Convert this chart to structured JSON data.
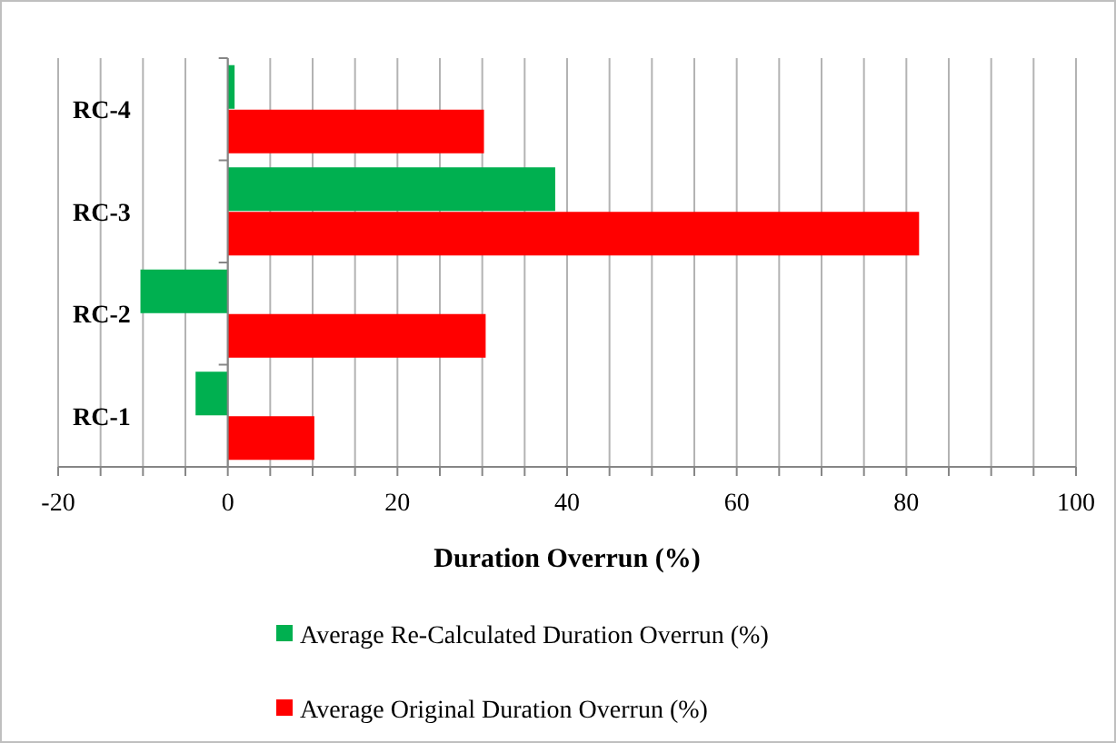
{
  "chart_data": {
    "type": "bar",
    "orientation": "horizontal",
    "xlabel": "Duration Overrun (%)",
    "categories": [
      "RC-4",
      "RC-3",
      "RC-2",
      "RC-1"
    ],
    "series": [
      {
        "name": "Average Re-Calculated Duration Overrun (%)",
        "color": "#00b050",
        "values": [
          0.8,
          38.6,
          -10.3,
          -3.8
        ]
      },
      {
        "name": "Average Original Duration Overrun (%)",
        "color": "#ff0000",
        "values": [
          30.2,
          81.5,
          30.4,
          10.2
        ]
      }
    ],
    "xlim": [
      -20,
      100
    ],
    "xticks": [
      -20,
      {
        "value": -15,
        "label": null
      },
      {
        "value": -10,
        "label": null
      },
      {
        "value": -5,
        "label": null
      },
      0,
      {
        "value": 5,
        "label": null
      },
      {
        "value": 10,
        "label": null
      },
      {
        "value": 15,
        "label": null
      },
      20,
      {
        "value": 25,
        "label": null
      },
      {
        "value": 30,
        "label": null
      },
      {
        "value": 35,
        "label": null
      },
      40,
      {
        "value": 45,
        "label": null
      },
      {
        "value": 50,
        "label": null
      },
      {
        "value": 55,
        "label": null
      },
      60,
      {
        "value": 65,
        "label": null
      },
      {
        "value": 70,
        "label": null
      },
      {
        "value": 75,
        "label": null
      },
      80,
      {
        "value": 85,
        "label": null
      },
      {
        "value": 90,
        "label": null
      },
      {
        "value": 95,
        "label": null
      },
      100
    ],
    "grid": "x",
    "legend": "bottom"
  }
}
